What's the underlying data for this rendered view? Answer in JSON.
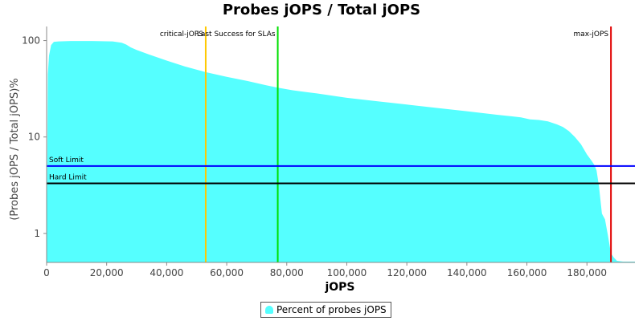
{
  "chart_data": {
    "type": "area",
    "title": "Probes jOPS / Total jOPS",
    "xlabel": "jOPS",
    "ylabel": "(Probes jOPS / Total jOPS)%",
    "y_scale": "log",
    "xlim": [
      0,
      196000
    ],
    "ylim": [
      0.5,
      140
    ],
    "x_ticks": [
      0,
      20000,
      40000,
      60000,
      80000,
      100000,
      120000,
      140000,
      160000,
      180000
    ],
    "x_tick_labels": [
      "0",
      "20,000",
      "40,000",
      "60,000",
      "80,000",
      "100,000",
      "120,000",
      "140,000",
      "160,000",
      "180,000"
    ],
    "y_ticks": [
      1,
      10,
      100
    ],
    "y_tick_labels": [
      "1",
      "10",
      "100"
    ],
    "grid": false,
    "legend_position": "bottom-center",
    "series": [
      {
        "name": "Percent of probes jOPS",
        "color": "#55ffff",
        "x": [
          0,
          400,
          800,
          1500,
          2400,
          4000,
          8000,
          15000,
          22000,
          25000,
          26500,
          28000,
          30000,
          34000,
          40000,
          46000,
          53000,
          60000,
          67000,
          73000,
          77000,
          82000,
          90000,
          100000,
          110000,
          120000,
          130000,
          140000,
          150000,
          158000,
          161000,
          164000,
          167000,
          170000,
          172000,
          174000,
          176000,
          178000,
          180000,
          181500,
          182500,
          183200,
          184000,
          185000,
          186000,
          187000,
          188000,
          189000,
          190000,
          192000,
          196000
        ],
        "y": [
          0.55,
          45,
          70,
          90,
          97,
          98,
          99,
          99,
          98,
          95,
          91,
          85,
          80,
          72,
          62,
          54,
          47,
          42,
          38,
          34.5,
          32.5,
          30.5,
          28.3,
          25.5,
          23.5,
          21.7,
          20,
          18.5,
          17,
          16,
          15.2,
          15,
          14.5,
          13.5,
          12.7,
          11.5,
          10,
          8.4,
          6.6,
          5.7,
          5.1,
          4.5,
          3.1,
          1.6,
          1.4,
          0.95,
          0.62,
          0.56,
          0.52,
          0.51,
          0.51
        ]
      }
    ],
    "vertical_markers": [
      {
        "label": "critical-jOPS",
        "x": 53000,
        "color": "#ffc800"
      },
      {
        "label": "Last Success for SLAs",
        "x": 77000,
        "color": "#00e000"
      },
      {
        "label": "max-jOPS",
        "x": 188000,
        "color": "#e00000"
      }
    ],
    "horizontal_markers": [
      {
        "label": "Soft Limit",
        "y": 5,
        "color": "#0000ff"
      },
      {
        "label": "Hard Limit",
        "y": 3.3,
        "color": "#000000"
      }
    ]
  }
}
